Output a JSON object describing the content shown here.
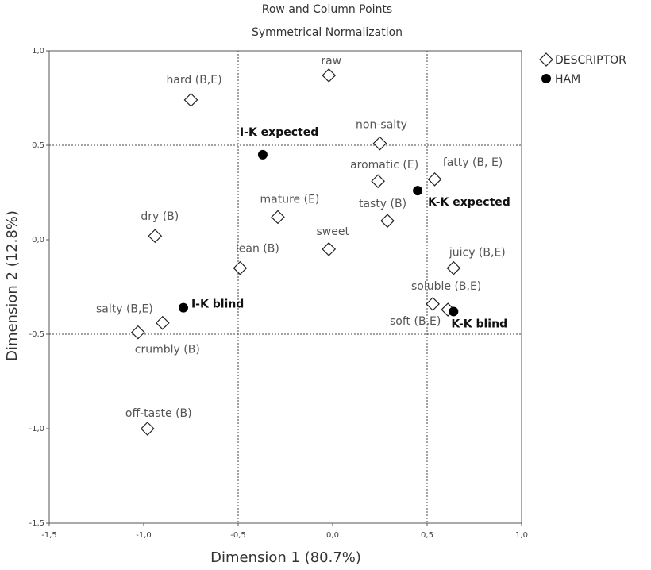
{
  "chart_data": {
    "type": "scatter",
    "title": "Row and Column Points",
    "subtitle": "Symmetrical Normalization",
    "x_label": "Dimension 1 (80.7%)",
    "y_label": "Dimension 2 (12.8%)",
    "xlim": [
      -1.5,
      1.0
    ],
    "ylim": [
      -1.5,
      1.0
    ],
    "xticks": [
      {
        "value": -1.5,
        "label": "-1,5"
      },
      {
        "value": -1.0,
        "label": "-1,0"
      },
      {
        "value": -0.5,
        "label": "-0,5"
      },
      {
        "value": 0.0,
        "label": "0,0"
      },
      {
        "value": 0.5,
        "label": "0,5"
      },
      {
        "value": 1.0,
        "label": "1,0"
      }
    ],
    "yticks": [
      {
        "value": -1.5,
        "label": "-1,5"
      },
      {
        "value": -1.0,
        "label": "-1,0"
      },
      {
        "value": -0.5,
        "label": "-0,5"
      },
      {
        "value": 0.0,
        "label": "0,0"
      },
      {
        "value": 0.5,
        "label": "0,5"
      },
      {
        "value": 1.0,
        "label": "1,0"
      }
    ],
    "x_reference_lines": [
      -0.5,
      0.5
    ],
    "y_reference_lines": [
      -0.5,
      0.5
    ],
    "legend": "top-right",
    "series": [
      {
        "name": "DESCRIPTOR",
        "marker": "diamond",
        "color": "#222222",
        "labels": [
          "raw",
          "hard (B,E)",
          "non-salty",
          "aromatic (E)",
          "fatty (B, E)",
          "mature (E)",
          "tasty (B)",
          "dry (B)",
          "sweet",
          "lean (B)",
          "juicy (B,E)",
          "soluble (B,E)",
          "soft (B,E)",
          "salty (B,E)",
          "crumbly (B)",
          "off-taste (B)"
        ],
        "x": [
          -0.02,
          -0.75,
          0.25,
          0.24,
          0.54,
          -0.29,
          0.29,
          -0.94,
          -0.02,
          -0.49,
          0.64,
          0.53,
          0.61,
          -1.03,
          -0.9,
          -0.98
        ],
        "values": [
          0.87,
          0.74,
          0.51,
          0.31,
          0.32,
          0.12,
          0.1,
          0.02,
          -0.05,
          -0.15,
          -0.15,
          -0.34,
          -0.37,
          -0.49,
          -0.44,
          -1.0
        ]
      },
      {
        "name": "HAM",
        "marker": "circle",
        "color": "#000000",
        "labels": [
          "I-K expected",
          "K-K expected",
          "I-K blind",
          "K-K blind"
        ],
        "x": [
          -0.37,
          0.45,
          -0.79,
          0.64
        ],
        "values": [
          0.45,
          0.26,
          -0.36,
          -0.38
        ]
      }
    ]
  }
}
